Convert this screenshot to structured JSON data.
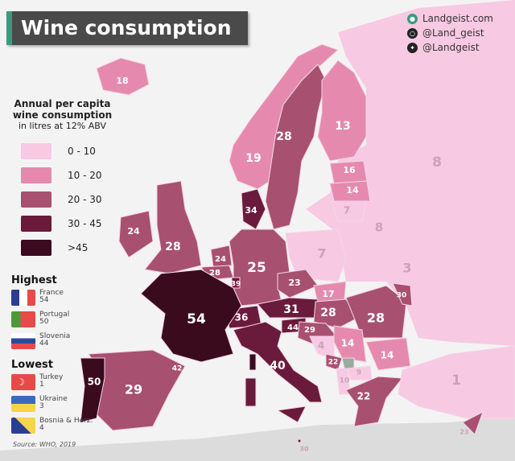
{
  "title": "Wine consumption",
  "social": [
    {
      "icon": "globe-icon",
      "text": "Landgeist.com",
      "color": "#3a9a7c"
    },
    {
      "icon": "instagram-icon",
      "text": "@Land_geist",
      "color": "#222222"
    },
    {
      "icon": "twitter-icon",
      "text": "@Landgeist",
      "color": "#222222"
    }
  ],
  "legend": {
    "title_line1": "Annual per capita",
    "title_line2": "wine consumption",
    "subtitle": "in litres at 12% ABV",
    "bins": [
      {
        "label": "0 - 10",
        "color": "#f8c9e3"
      },
      {
        "label": "10 - 20",
        "color": "#e58aae"
      },
      {
        "label": "20 - 30",
        "color": "#a8506f"
      },
      {
        "label": "30 - 45",
        "color": "#6a1a3b"
      },
      {
        "label": ">45",
        "color": "#3a0a1d"
      }
    ]
  },
  "highest": {
    "title": "Highest",
    "items": [
      {
        "country": "France",
        "value": "54"
      },
      {
        "country": "Portugal",
        "value": "50"
      },
      {
        "country": "Slovenia",
        "value": "44"
      }
    ]
  },
  "lowest": {
    "title": "Lowest",
    "items": [
      {
        "country": "Turkey",
        "value": "1"
      },
      {
        "country": "Ukraine",
        "value": "3"
      },
      {
        "country": "Bosnia & Herz.",
        "value": "4"
      }
    ]
  },
  "source": "Source: WHO, 2019",
  "countries": {
    "iceland": "18",
    "norway": "19",
    "sweden": "28",
    "finland": "13",
    "russia": "8",
    "estonia": "16",
    "latvia": "14",
    "lithuania": "7",
    "belarus": "8",
    "denmark": "34",
    "ireland": "24",
    "uk": "28",
    "netherlands": "24",
    "belgium": "28",
    "luxembourg": "39",
    "germany": "25",
    "poland": "7",
    "ukraine": "3",
    "czechia": "23",
    "slovakia": "17",
    "austria": "31",
    "hungary": "28",
    "romania": "28",
    "moldova": "30",
    "switzerland": "36",
    "slovenia": "44",
    "croatia": "29",
    "bosnia": "4",
    "serbia": "14",
    "bulgaria": "14",
    "montenegro": "22",
    "north_macedonia": "9",
    "albania": "10",
    "greece": "22",
    "turkey": "1",
    "cyprus": "23",
    "malta": "30",
    "italy": "40",
    "france": "54",
    "spain": "29",
    "portugal": "50",
    "andorra": "42"
  },
  "no_data_color": "#9aaa9e"
}
